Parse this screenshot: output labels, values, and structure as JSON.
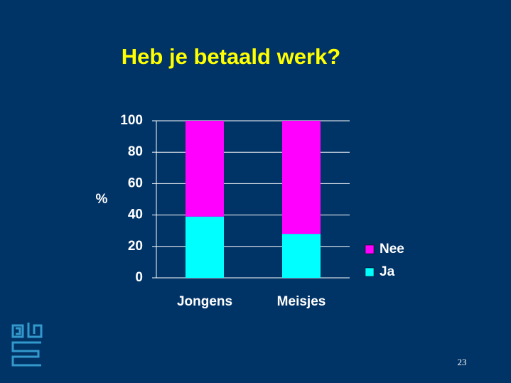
{
  "chart_data": {
    "type": "stacked_bar",
    "title": "Heb je betaald werk?",
    "y_label": "%",
    "categories": [
      "Jongens",
      "Meisjes"
    ],
    "series": [
      {
        "name": "Ja",
        "color": "#00ffff",
        "values": [
          39,
          28
        ]
      },
      {
        "name": "Nee",
        "color": "#ff00ff",
        "values": [
          61,
          72
        ]
      }
    ],
    "ylim": [
      0,
      100
    ],
    "yticks": [
      0,
      20,
      40,
      60,
      80,
      100
    ],
    "grid": true,
    "legend": "right"
  },
  "page_number": "23"
}
